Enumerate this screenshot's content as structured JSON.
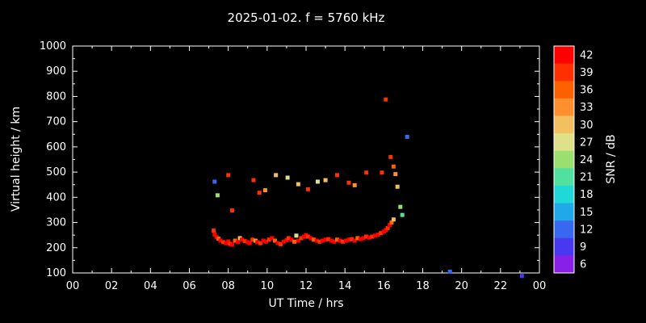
{
  "title": "2025-01-02. f = 5760 kHz",
  "chart_data": {
    "type": "scatter",
    "title": "2025-01-02. f = 5760 kHz",
    "xlabel": "UT Time / hrs",
    "ylabel": "Virtual height / km",
    "xlim": [
      0,
      24
    ],
    "ylim": [
      100,
      1000
    ],
    "grid": false,
    "background": "#000000",
    "axis_color": "#ffffff",
    "x_tick_values": [
      0,
      2,
      4,
      6,
      8,
      10,
      12,
      14,
      16,
      18,
      20,
      22,
      24
    ],
    "x_tick_labels": [
      "00",
      "02",
      "04",
      "06",
      "08",
      "10",
      "12",
      "14",
      "16",
      "18",
      "20",
      "22",
      "00"
    ],
    "y_tick_values": [
      100,
      200,
      300,
      400,
      500,
      600,
      700,
      800,
      900,
      1000
    ],
    "colorbar": {
      "label": "SNR / dB",
      "position": "right",
      "range": [
        4.5,
        43.5
      ],
      "tick_values": [
        42,
        39,
        36,
        33,
        30,
        27,
        24,
        21,
        18,
        15,
        12,
        9,
        6
      ],
      "colors": {
        "42": "#ff0000",
        "39": "#ff3000",
        "36": "#ff6000",
        "33": "#ff9030",
        "30": "#f2c060",
        "27": "#dfe08a",
        "24": "#9ae070",
        "21": "#50e0a0",
        "18": "#20d8d8",
        "15": "#20a8e8",
        "12": "#3868f0",
        "9": "#4838f0",
        "6": "#8820e8"
      }
    },
    "points_format": [
      "ut_hours",
      "virtual_height_km",
      "snr_db"
    ],
    "points": [
      [
        7.25,
        268,
        39
      ],
      [
        7.3,
        252,
        42
      ],
      [
        7.4,
        242,
        42
      ],
      [
        7.5,
        236,
        36
      ],
      [
        7.6,
        228,
        42
      ],
      [
        7.75,
        222,
        39
      ],
      [
        7.9,
        218,
        42
      ],
      [
        8.0,
        225,
        42
      ],
      [
        8.1,
        215,
        39
      ],
      [
        8.2,
        212,
        42
      ],
      [
        8.35,
        228,
        36
      ],
      [
        8.5,
        222,
        42
      ],
      [
        8.6,
        238,
        30
      ],
      [
        8.7,
        232,
        42
      ],
      [
        8.85,
        226,
        39
      ],
      [
        9.0,
        222,
        42
      ],
      [
        9.1,
        218,
        42
      ],
      [
        9.25,
        232,
        39
      ],
      [
        9.4,
        228,
        33
      ],
      [
        9.5,
        222,
        42
      ],
      [
        9.65,
        218,
        39
      ],
      [
        9.8,
        228,
        42
      ],
      [
        9.95,
        224,
        42
      ],
      [
        10.1,
        232,
        39
      ],
      [
        10.25,
        238,
        42
      ],
      [
        10.4,
        228,
        36
      ],
      [
        10.55,
        218,
        42
      ],
      [
        10.7,
        214,
        39
      ],
      [
        10.85,
        224,
        42
      ],
      [
        11.0,
        230,
        42
      ],
      [
        11.1,
        238,
        39
      ],
      [
        11.25,
        232,
        42
      ],
      [
        11.4,
        224,
        36
      ],
      [
        11.5,
        248,
        27
      ],
      [
        11.6,
        228,
        42
      ],
      [
        11.75,
        238,
        39
      ],
      [
        11.9,
        244,
        42
      ],
      [
        12.0,
        250,
        42
      ],
      [
        12.1,
        244,
        39
      ],
      [
        12.25,
        238,
        42
      ],
      [
        12.4,
        232,
        36
      ],
      [
        12.55,
        228,
        42
      ],
      [
        12.7,
        224,
        39
      ],
      [
        12.85,
        228,
        42
      ],
      [
        13.0,
        232,
        42
      ],
      [
        13.15,
        234,
        39
      ],
      [
        13.3,
        228,
        42
      ],
      [
        13.45,
        224,
        42
      ],
      [
        13.6,
        232,
        36
      ],
      [
        13.75,
        228,
        42
      ],
      [
        13.9,
        224,
        39
      ],
      [
        14.05,
        228,
        42
      ],
      [
        14.2,
        232,
        42
      ],
      [
        14.35,
        234,
        39
      ],
      [
        14.5,
        228,
        42
      ],
      [
        14.65,
        238,
        36
      ],
      [
        14.8,
        234,
        42
      ],
      [
        14.95,
        238,
        42
      ],
      [
        15.1,
        244,
        39
      ],
      [
        15.25,
        240,
        42
      ],
      [
        15.4,
        244,
        39
      ],
      [
        15.55,
        248,
        42
      ],
      [
        15.7,
        252,
        42
      ],
      [
        15.85,
        258,
        39
      ],
      [
        16.0,
        264,
        42
      ],
      [
        16.1,
        270,
        42
      ],
      [
        16.2,
        278,
        39
      ],
      [
        16.3,
        290,
        42
      ],
      [
        16.4,
        300,
        36
      ],
      [
        16.5,
        312,
        30
      ],
      [
        7.3,
        462,
        12
      ],
      [
        7.45,
        408,
        24
      ],
      [
        8.0,
        488,
        39
      ],
      [
        8.2,
        348,
        39
      ],
      [
        9.3,
        468,
        39
      ],
      [
        9.6,
        418,
        39
      ],
      [
        9.9,
        428,
        33
      ],
      [
        10.45,
        488,
        30
      ],
      [
        11.05,
        478,
        27
      ],
      [
        11.6,
        452,
        30
      ],
      [
        12.1,
        432,
        39
      ],
      [
        12.6,
        462,
        27
      ],
      [
        13.0,
        468,
        30
      ],
      [
        13.6,
        488,
        39
      ],
      [
        14.2,
        458,
        39
      ],
      [
        14.5,
        448,
        33
      ],
      [
        15.1,
        498,
        39
      ],
      [
        15.9,
        498,
        39
      ],
      [
        16.1,
        788,
        39
      ],
      [
        16.35,
        560,
        39
      ],
      [
        16.5,
        522,
        36
      ],
      [
        16.6,
        492,
        33
      ],
      [
        16.7,
        442,
        30
      ],
      [
        16.85,
        362,
        24
      ],
      [
        16.95,
        330,
        21
      ],
      [
        17.2,
        640,
        12
      ],
      [
        19.4,
        105,
        12
      ],
      [
        23.1,
        88,
        9
      ]
    ]
  }
}
